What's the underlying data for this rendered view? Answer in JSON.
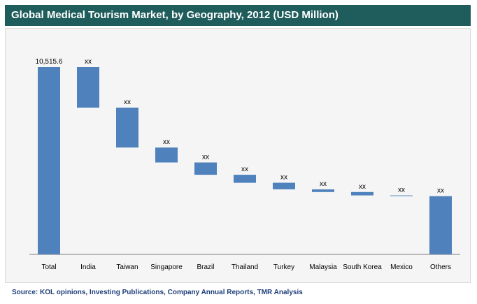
{
  "title": "Global Medical Tourism Market, by Geography, 2012 (USD Million)",
  "source": "Source: KOL opinions, Investing Publications, Company Annual Reports, TMR Analysis",
  "colors": {
    "title_bg": "#1f5c5c",
    "bar": "#4f81bd",
    "source_text": "#1f3f7a"
  },
  "chart_data": {
    "type": "bar",
    "subtype": "waterfall",
    "title": "Global Medical Tourism Market, by Geography, 2012 (USD Million)",
    "categories": [
      "Total",
      "India",
      "Taiwan",
      "Singapore",
      "Brazil",
      "Thailand",
      "Turkey",
      "Malaysia",
      "South Korea",
      "Mexico",
      "Others"
    ],
    "bar_labels": [
      "10,515.6",
      "xx",
      "xx",
      "xx",
      "xx",
      "xx",
      "xx",
      "xx",
      "xx",
      "xx",
      "xx"
    ],
    "bars": [
      {
        "name": "Total",
        "start": 0,
        "end": 10515.6
      },
      {
        "name": "India",
        "start": 10515.6,
        "end": 8240
      },
      {
        "name": "Taiwan",
        "start": 8240,
        "end": 6000
      },
      {
        "name": "Singapore",
        "start": 6000,
        "end": 5160
      },
      {
        "name": "Brazil",
        "start": 5160,
        "end": 4470
      },
      {
        "name": "Thailand",
        "start": 4470,
        "end": 4020
      },
      {
        "name": "Turkey",
        "start": 4020,
        "end": 3650
      },
      {
        "name": "Malaysia",
        "start": 3650,
        "end": 3500
      },
      {
        "name": "South Korea",
        "start": 3500,
        "end": 3310
      },
      {
        "name": "Mexico",
        "start": 3310,
        "end": 3270
      },
      {
        "name": "Others",
        "start": 3270,
        "end": 0
      }
    ],
    "ylim": [
      0,
      10515.6
    ],
    "grid": false,
    "legend": "none",
    "xlabel": "",
    "ylabel": ""
  }
}
